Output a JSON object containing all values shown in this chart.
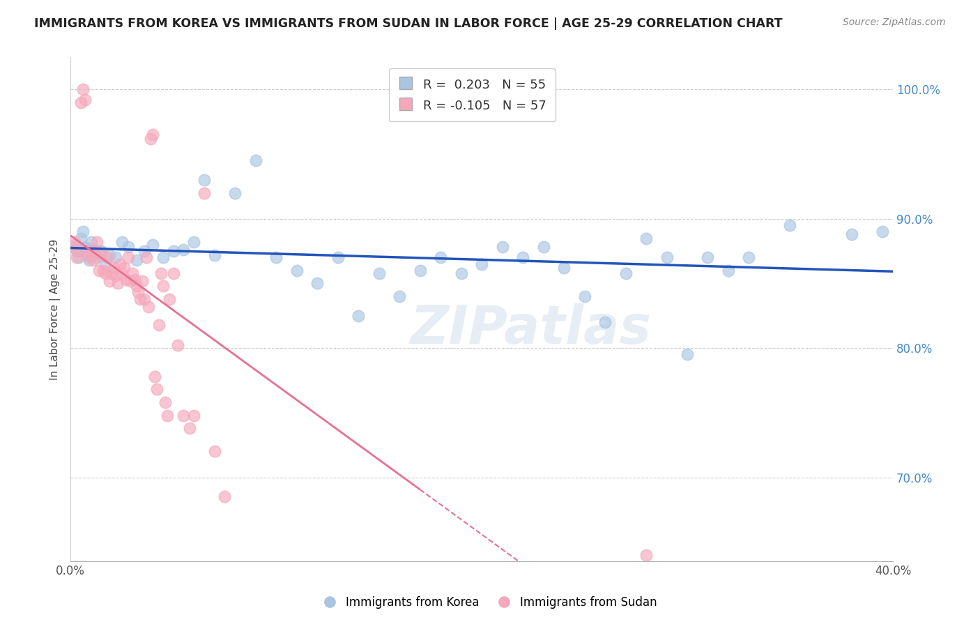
{
  "title": "IMMIGRANTS FROM KOREA VS IMMIGRANTS FROM SUDAN IN LABOR FORCE | AGE 25-29 CORRELATION CHART",
  "source": "Source: ZipAtlas.com",
  "ylabel": "In Labor Force | Age 25-29",
  "korea_label": "Immigrants from Korea",
  "sudan_label": "Immigrants from Sudan",
  "korea_R": 0.203,
  "korea_N": 55,
  "sudan_R": -0.105,
  "sudan_N": 57,
  "korea_color": "#aac5e2",
  "sudan_color": "#f5a8bc",
  "korea_line_color": "#2255bb",
  "sudan_line_color": "#e87090",
  "xlim": [
    0.0,
    0.4
  ],
  "ylim": [
    0.635,
    1.025
  ],
  "yticks": [
    0.7,
    0.8,
    0.9,
    1.0
  ],
  "ytick_labels": [
    "70.0%",
    "80.0%",
    "90.0%",
    "100.0%"
  ],
  "xticks": [
    0.0,
    0.05,
    0.1,
    0.15,
    0.2,
    0.25,
    0.3,
    0.35,
    0.4
  ],
  "watermark": "ZIPatlas",
  "korea_x": [
    0.002,
    0.003,
    0.004,
    0.005,
    0.006,
    0.007,
    0.008,
    0.009,
    0.01,
    0.011,
    0.013,
    0.015,
    0.017,
    0.019,
    0.022,
    0.025,
    0.028,
    0.032,
    0.036,
    0.04,
    0.045,
    0.05,
    0.055,
    0.06,
    0.065,
    0.07,
    0.08,
    0.09,
    0.1,
    0.11,
    0.12,
    0.13,
    0.14,
    0.15,
    0.16,
    0.17,
    0.18,
    0.19,
    0.2,
    0.21,
    0.22,
    0.23,
    0.24,
    0.25,
    0.26,
    0.27,
    0.28,
    0.29,
    0.3,
    0.31,
    0.32,
    0.33,
    0.35,
    0.38,
    0.395
  ],
  "korea_y": [
    0.88,
    0.875,
    0.87,
    0.885,
    0.89,
    0.878,
    0.872,
    0.868,
    0.882,
    0.876,
    0.87,
    0.875,
    0.865,
    0.872,
    0.87,
    0.882,
    0.878,
    0.868,
    0.875,
    0.88,
    0.87,
    0.875,
    0.876,
    0.882,
    0.93,
    0.872,
    0.92,
    0.945,
    0.87,
    0.86,
    0.85,
    0.87,
    0.825,
    0.858,
    0.84,
    0.86,
    0.87,
    0.858,
    0.865,
    0.878,
    0.87,
    0.878,
    0.862,
    0.84,
    0.82,
    0.858,
    0.885,
    0.87,
    0.795,
    0.87,
    0.86,
    0.87,
    0.895,
    0.888,
    0.89
  ],
  "sudan_x": [
    0.001,
    0.002,
    0.003,
    0.004,
    0.005,
    0.006,
    0.007,
    0.008,
    0.009,
    0.01,
    0.011,
    0.012,
    0.013,
    0.014,
    0.015,
    0.016,
    0.017,
    0.018,
    0.019,
    0.02,
    0.021,
    0.022,
    0.023,
    0.024,
    0.025,
    0.026,
    0.027,
    0.028,
    0.029,
    0.03,
    0.031,
    0.032,
    0.033,
    0.034,
    0.035,
    0.036,
    0.037,
    0.038,
    0.039,
    0.04,
    0.041,
    0.042,
    0.043,
    0.044,
    0.045,
    0.046,
    0.047,
    0.048,
    0.05,
    0.052,
    0.055,
    0.058,
    0.06,
    0.065,
    0.07,
    0.075,
    0.28
  ],
  "sudan_y": [
    0.878,
    0.882,
    0.87,
    0.875,
    0.99,
    1.0,
    0.992,
    0.876,
    0.87,
    0.872,
    0.868,
    0.875,
    0.882,
    0.86,
    0.872,
    0.86,
    0.858,
    0.87,
    0.852,
    0.858,
    0.862,
    0.856,
    0.85,
    0.865,
    0.858,
    0.862,
    0.853,
    0.87,
    0.852,
    0.858,
    0.853,
    0.848,
    0.843,
    0.838,
    0.852,
    0.838,
    0.87,
    0.832,
    0.962,
    0.965,
    0.778,
    0.768,
    0.818,
    0.858,
    0.848,
    0.758,
    0.748,
    0.838,
    0.858,
    0.802,
    0.748,
    0.738,
    0.748,
    0.92,
    0.72,
    0.685,
    0.64
  ]
}
